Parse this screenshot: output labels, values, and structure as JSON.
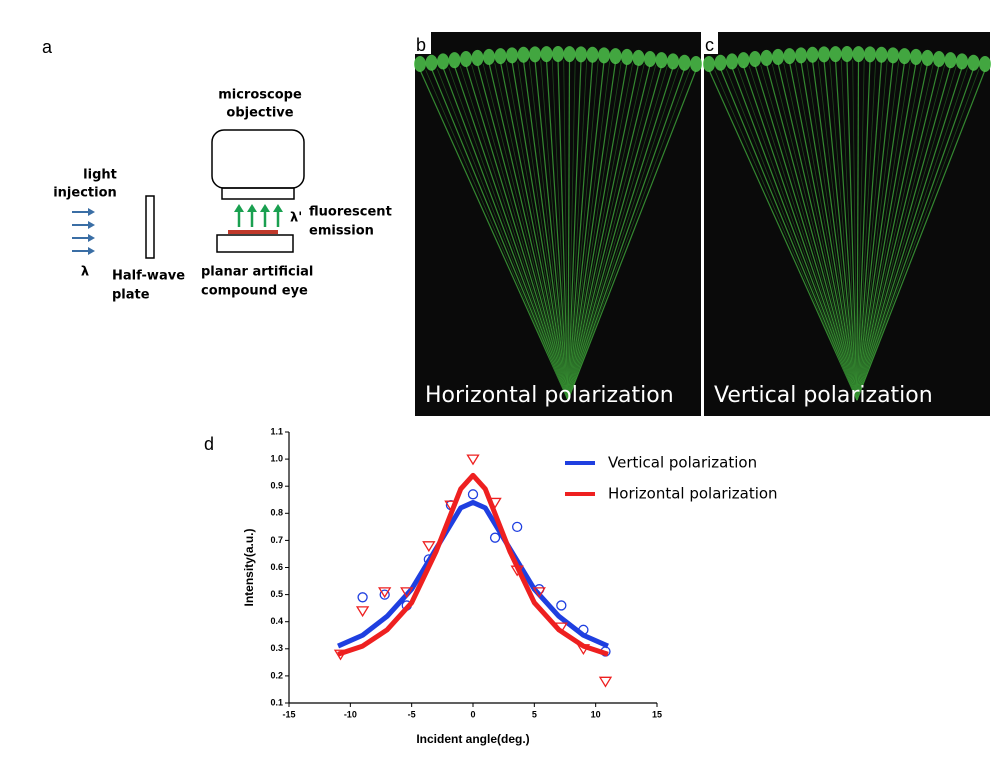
{
  "panels": {
    "a": {
      "label": "a",
      "objective": [
        "microscope",
        "objective"
      ],
      "injection": [
        "light",
        "injection"
      ],
      "lambda_in": "λ",
      "plate": [
        "Half-wave",
        "plate"
      ],
      "lambda_out": "λ'",
      "emission": [
        "fluorescent",
        "emission"
      ],
      "eye": [
        "planar artificial",
        "compound eye"
      ]
    },
    "b": {
      "label": "b",
      "caption": "Horizontal polarization"
    },
    "c": {
      "label": "c",
      "caption": "Vertical polarization"
    },
    "d": {
      "label": "d"
    }
  },
  "chart_data": {
    "type": "scatter",
    "x_label": "Incident angle(deg.)",
    "y_label": "Intensity(a.u.)",
    "xlim": [
      -15,
      15
    ],
    "xticks": [
      -15,
      -10,
      -5,
      0,
      5,
      10,
      15
    ],
    "ylim": [
      0.1,
      1.1
    ],
    "yticks": [
      0.1,
      0.2,
      0.3,
      0.4,
      0.5,
      0.6,
      0.7,
      0.8,
      0.9,
      {
        "value": 1,
        "label": "1.0"
      },
      1.1
    ],
    "series": [
      {
        "name": "Vertical polarization",
        "color": "#1f3fe0",
        "marker": "circle",
        "x": [
          -11,
          -9,
          -7,
          -5,
          -3,
          -1,
          0,
          1,
          3,
          5,
          7,
          9,
          11
        ],
        "values": [
          0.31,
          0.35,
          0.42,
          0.52,
          0.67,
          0.82,
          0.84,
          0.82,
          0.67,
          0.52,
          0.42,
          0.35,
          0.31
        ],
        "points_x": [
          -9,
          -7.2,
          -5.4,
          -3.6,
          -1.8,
          0,
          1.8,
          3.6,
          5.4,
          7.2,
          9,
          10.8
        ],
        "points_values": [
          0.49,
          0.5,
          0.46,
          0.63,
          0.83,
          0.87,
          0.71,
          0.75,
          0.52,
          0.46,
          0.37,
          0.29
        ]
      },
      {
        "name": "Horizontal polarization",
        "color": "#ee2020",
        "marker": "triangle-down",
        "x": [
          -11,
          -9,
          -7,
          -5,
          -3,
          -1,
          0,
          1,
          3,
          5,
          7,
          9,
          11
        ],
        "values": [
          0.28,
          0.31,
          0.37,
          0.47,
          0.66,
          0.89,
          0.94,
          0.89,
          0.66,
          0.47,
          0.37,
          0.31,
          0.28
        ],
        "points_x": [
          -10.8,
          -9,
          -7.2,
          -5.4,
          -3.6,
          -1.8,
          0,
          1.8,
          3.6,
          5.4,
          7.2,
          9,
          10.8
        ],
        "points_values": [
          0.28,
          0.44,
          0.51,
          0.51,
          0.68,
          0.83,
          1.0,
          0.84,
          0.59,
          0.51,
          0.38,
          0.3,
          0.18
        ]
      }
    ]
  }
}
